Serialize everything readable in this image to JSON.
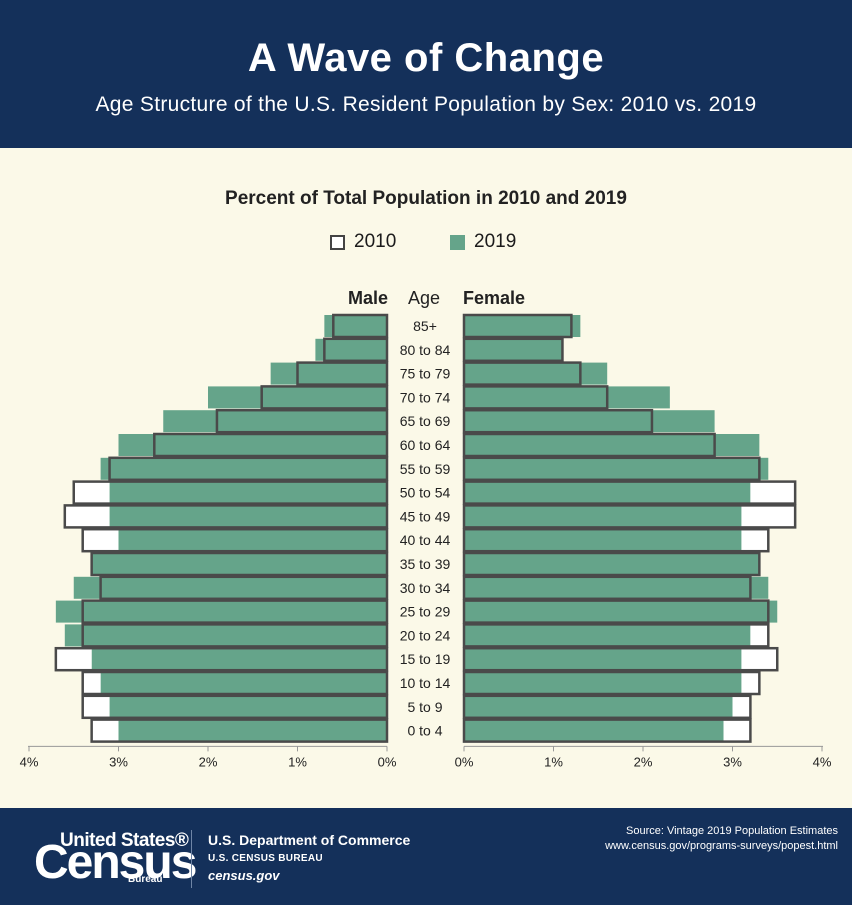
{
  "header": {
    "title": "A Wave of Change",
    "subtitle": "Age Structure of the U.S. Resident Population by Sex: 2010 vs. 2019"
  },
  "chart_data": {
    "type": "bar",
    "title": "Percent of Total Population in 2010 and 2019",
    "legend": [
      "2010",
      "2019"
    ],
    "legend_placement": "top-center",
    "left_label": "Male",
    "center_label": "Age",
    "right_label": "Female",
    "x_ticks_left": [
      "4%",
      "3%",
      "2%",
      "1%",
      "0%"
    ],
    "x_ticks_right": [
      "0%",
      "1%",
      "2%",
      "3%",
      "4%"
    ],
    "xlim": [
      0,
      4
    ],
    "categories": [
      "85+",
      "80 to 84",
      "75 to 79",
      "70 to 74",
      "65 to 69",
      "60 to 64",
      "55 to 59",
      "50 to 54",
      "45 to 49",
      "40 to 44",
      "35 to 39",
      "30 to 34",
      "25 to 29",
      "20 to 24",
      "15 to 19",
      "10 to 14",
      "5 to 9",
      "0 to 4"
    ],
    "series": [
      {
        "name": "2010",
        "sex": "male",
        "values": [
          0.6,
          0.7,
          1.0,
          1.4,
          1.9,
          2.6,
          3.1,
          3.5,
          3.6,
          3.4,
          3.3,
          3.2,
          3.4,
          3.4,
          3.7,
          3.4,
          3.4,
          3.3
        ]
      },
      {
        "name": "2019",
        "sex": "male",
        "values": [
          0.7,
          0.8,
          1.3,
          2.0,
          2.5,
          3.0,
          3.2,
          3.1,
          3.1,
          3.0,
          3.3,
          3.5,
          3.7,
          3.6,
          3.3,
          3.2,
          3.1,
          3.0
        ]
      },
      {
        "name": "2010",
        "sex": "female",
        "values": [
          1.2,
          1.1,
          1.3,
          1.6,
          2.1,
          2.8,
          3.3,
          3.7,
          3.7,
          3.4,
          3.3,
          3.2,
          3.4,
          3.4,
          3.5,
          3.3,
          3.2,
          3.2
        ]
      },
      {
        "name": "2019",
        "sex": "female",
        "values": [
          1.3,
          1.1,
          1.6,
          2.3,
          2.8,
          3.3,
          3.4,
          3.2,
          3.1,
          3.1,
          3.3,
          3.4,
          3.5,
          3.2,
          3.1,
          3.1,
          3.0,
          2.9
        ]
      }
    ],
    "colors": {
      "c2019": "#65a48a",
      "c2010_stroke": "#4a4a4a",
      "c2010_fill": "#ffffff"
    }
  },
  "footer": {
    "logo_line1": "United States®",
    "logo_line2": "Census",
    "logo_line3": "Bureau",
    "dept_line1": "U.S. Department of Commerce",
    "dept_line2": "U.S. CENSUS BUREAU",
    "dept_line3": "census.gov",
    "source_line1": "Source: Vintage 2019 Population Estimates",
    "source_line2": "www.census.gov/programs-surveys/popest.html"
  }
}
